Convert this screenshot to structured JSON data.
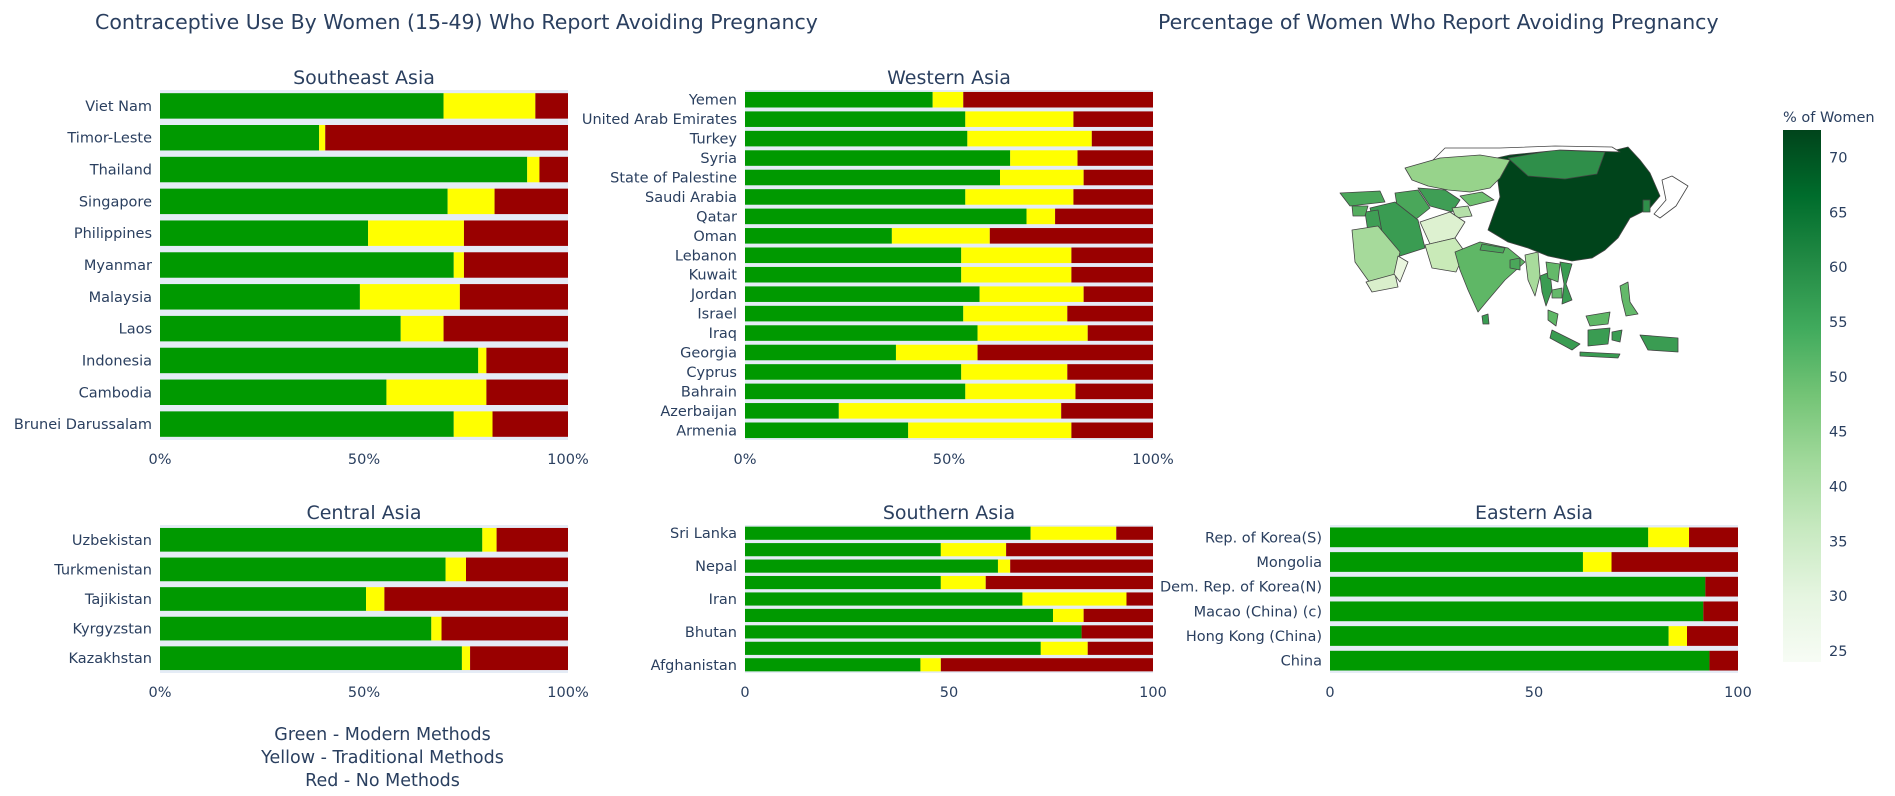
{
  "titles": {
    "left": "Contraceptive Use By Women (15-49) Who Report Avoiding Pregnancy",
    "right": "Percentage of Women Who Report Avoiding Pregnancy"
  },
  "legend_note": [
    "Green - Modern Methods",
    "Yellow - Traditional Methods",
    "Red - No Methods"
  ],
  "colors": {
    "modern": "#009900",
    "traditional": "#ffff00",
    "none": "#990000",
    "plot_bg": "#e5ecf6",
    "text": "#2a3f5f"
  },
  "colorbar": {
    "title": "% of Women",
    "ticks": [
      "70",
      "65",
      "60",
      "55",
      "50",
      "45",
      "40",
      "35",
      "30",
      "25"
    ],
    "range": [
      24,
      72.5
    ]
  },
  "map": {
    "type": "choropleth",
    "region": "Asia",
    "colorscale": "Greens"
  },
  "chart_data": [
    {
      "type": "bar",
      "stacked": true,
      "orientation": "horizontal",
      "title": "Southeast Asia",
      "categories": [
        "Viet Nam",
        "Timor-Leste",
        "Thailand",
        "Singapore",
        "Philippines",
        "Myanmar",
        "Malaysia",
        "Laos",
        "Indonesia",
        "Cambodia",
        "Brunei Darussalam"
      ],
      "series": [
        {
          "values": [
            69.5,
            39,
            90,
            70.5,
            51,
            72,
            49,
            59,
            78,
            55.5,
            72
          ]
        },
        {
          "values": [
            22.5,
            1.5,
            3,
            11.5,
            23.5,
            2.5,
            24.5,
            10.5,
            2,
            24.5,
            9.5
          ]
        },
        {
          "values": [
            8,
            59.5,
            7,
            18,
            25.5,
            25.5,
            26.5,
            30.5,
            20,
            20,
            18.5
          ]
        }
      ],
      "xlim": [
        0,
        100
      ],
      "xticks": [
        "0%",
        "50%",
        "100%"
      ]
    },
    {
      "type": "bar",
      "stacked": true,
      "orientation": "horizontal",
      "title": "Western Asia",
      "categories": [
        "Yemen",
        "United Arab Emirates",
        "Turkey",
        "Syria",
        "State of Palestine",
        "Saudi Arabia",
        "Qatar",
        "Oman",
        "Lebanon",
        "Kuwait",
        "Jordan",
        "Israel",
        "Iraq",
        "Georgia",
        "Cyprus",
        "Bahrain",
        "Azerbaijan",
        "Armenia"
      ],
      "series": [
        {
          "values": [
            46,
            54,
            54.5,
            65,
            62.5,
            54,
            69,
            36,
            53,
            53,
            57.5,
            53.5,
            57,
            37,
            53,
            54,
            23,
            40
          ]
        },
        {
          "values": [
            7.5,
            26.5,
            30.5,
            16.5,
            20.5,
            26.5,
            7,
            24,
            27,
            27,
            25.5,
            25.5,
            27,
            20,
            26,
            27,
            54.5,
            40
          ]
        },
        {
          "values": [
            46.5,
            19.5,
            15,
            18.5,
            17,
            19.5,
            24,
            40,
            20,
            20,
            17,
            21,
            16,
            43,
            21,
            19,
            22.5,
            20
          ]
        }
      ],
      "xlim": [
        0,
        100
      ],
      "xticks": [
        "0%",
        "50%",
        "100%"
      ]
    },
    {
      "type": "bar",
      "stacked": true,
      "orientation": "horizontal",
      "title": "Central Asia",
      "categories": [
        "Uzbekistan",
        "Turkmenistan",
        "Tajikistan",
        "Kyrgyzstan",
        "Kazakhstan"
      ],
      "series": [
        {
          "values": [
            79,
            70,
            50.5,
            66.5,
            74
          ]
        },
        {
          "values": [
            3.5,
            5,
            4.5,
            2.5,
            2
          ]
        },
        {
          "values": [
            17.5,
            25,
            45,
            31,
            24
          ]
        }
      ],
      "xlim": [
        0,
        100
      ],
      "xticks": [
        "0%",
        "50%",
        "100%"
      ]
    },
    {
      "type": "bar",
      "stacked": true,
      "orientation": "horizontal",
      "title": "Southern Asia",
      "categories": [
        "Sri Lanka",
        "",
        "Nepal",
        "",
        "Iran",
        "",
        "Bhutan",
        "",
        "Afghanistan"
      ],
      "series": [
        {
          "values": [
            70,
            48,
            62,
            48,
            68,
            75.5,
            82.5,
            72.5,
            43
          ]
        },
        {
          "values": [
            21,
            16,
            3,
            11,
            25.5,
            7.5,
            0,
            11.5,
            5
          ]
        },
        {
          "values": [
            9,
            36,
            35,
            41,
            6.5,
            17,
            17.5,
            16,
            52
          ]
        }
      ],
      "xlim": [
        0,
        100
      ],
      "xticks": [
        "0",
        "50",
        "100"
      ]
    },
    {
      "type": "bar",
      "stacked": true,
      "orientation": "horizontal",
      "title": "Eastern Asia",
      "categories": [
        "Rep. of Korea(S)",
        "Mongolia",
        "Dem. Rep. of Korea(N)",
        "Macao (China) (c)",
        "Hong Kong (China)",
        "China"
      ],
      "series": [
        {
          "values": [
            78,
            62,
            92,
            91.5,
            83,
            93
          ]
        },
        {
          "values": [
            10,
            7,
            0,
            0,
            4.5,
            0
          ]
        },
        {
          "values": [
            12,
            31,
            8,
            8.5,
            12.5,
            7
          ]
        }
      ],
      "xlim": [
        0,
        100
      ],
      "xticks": [
        "0",
        "50",
        "100"
      ]
    }
  ]
}
